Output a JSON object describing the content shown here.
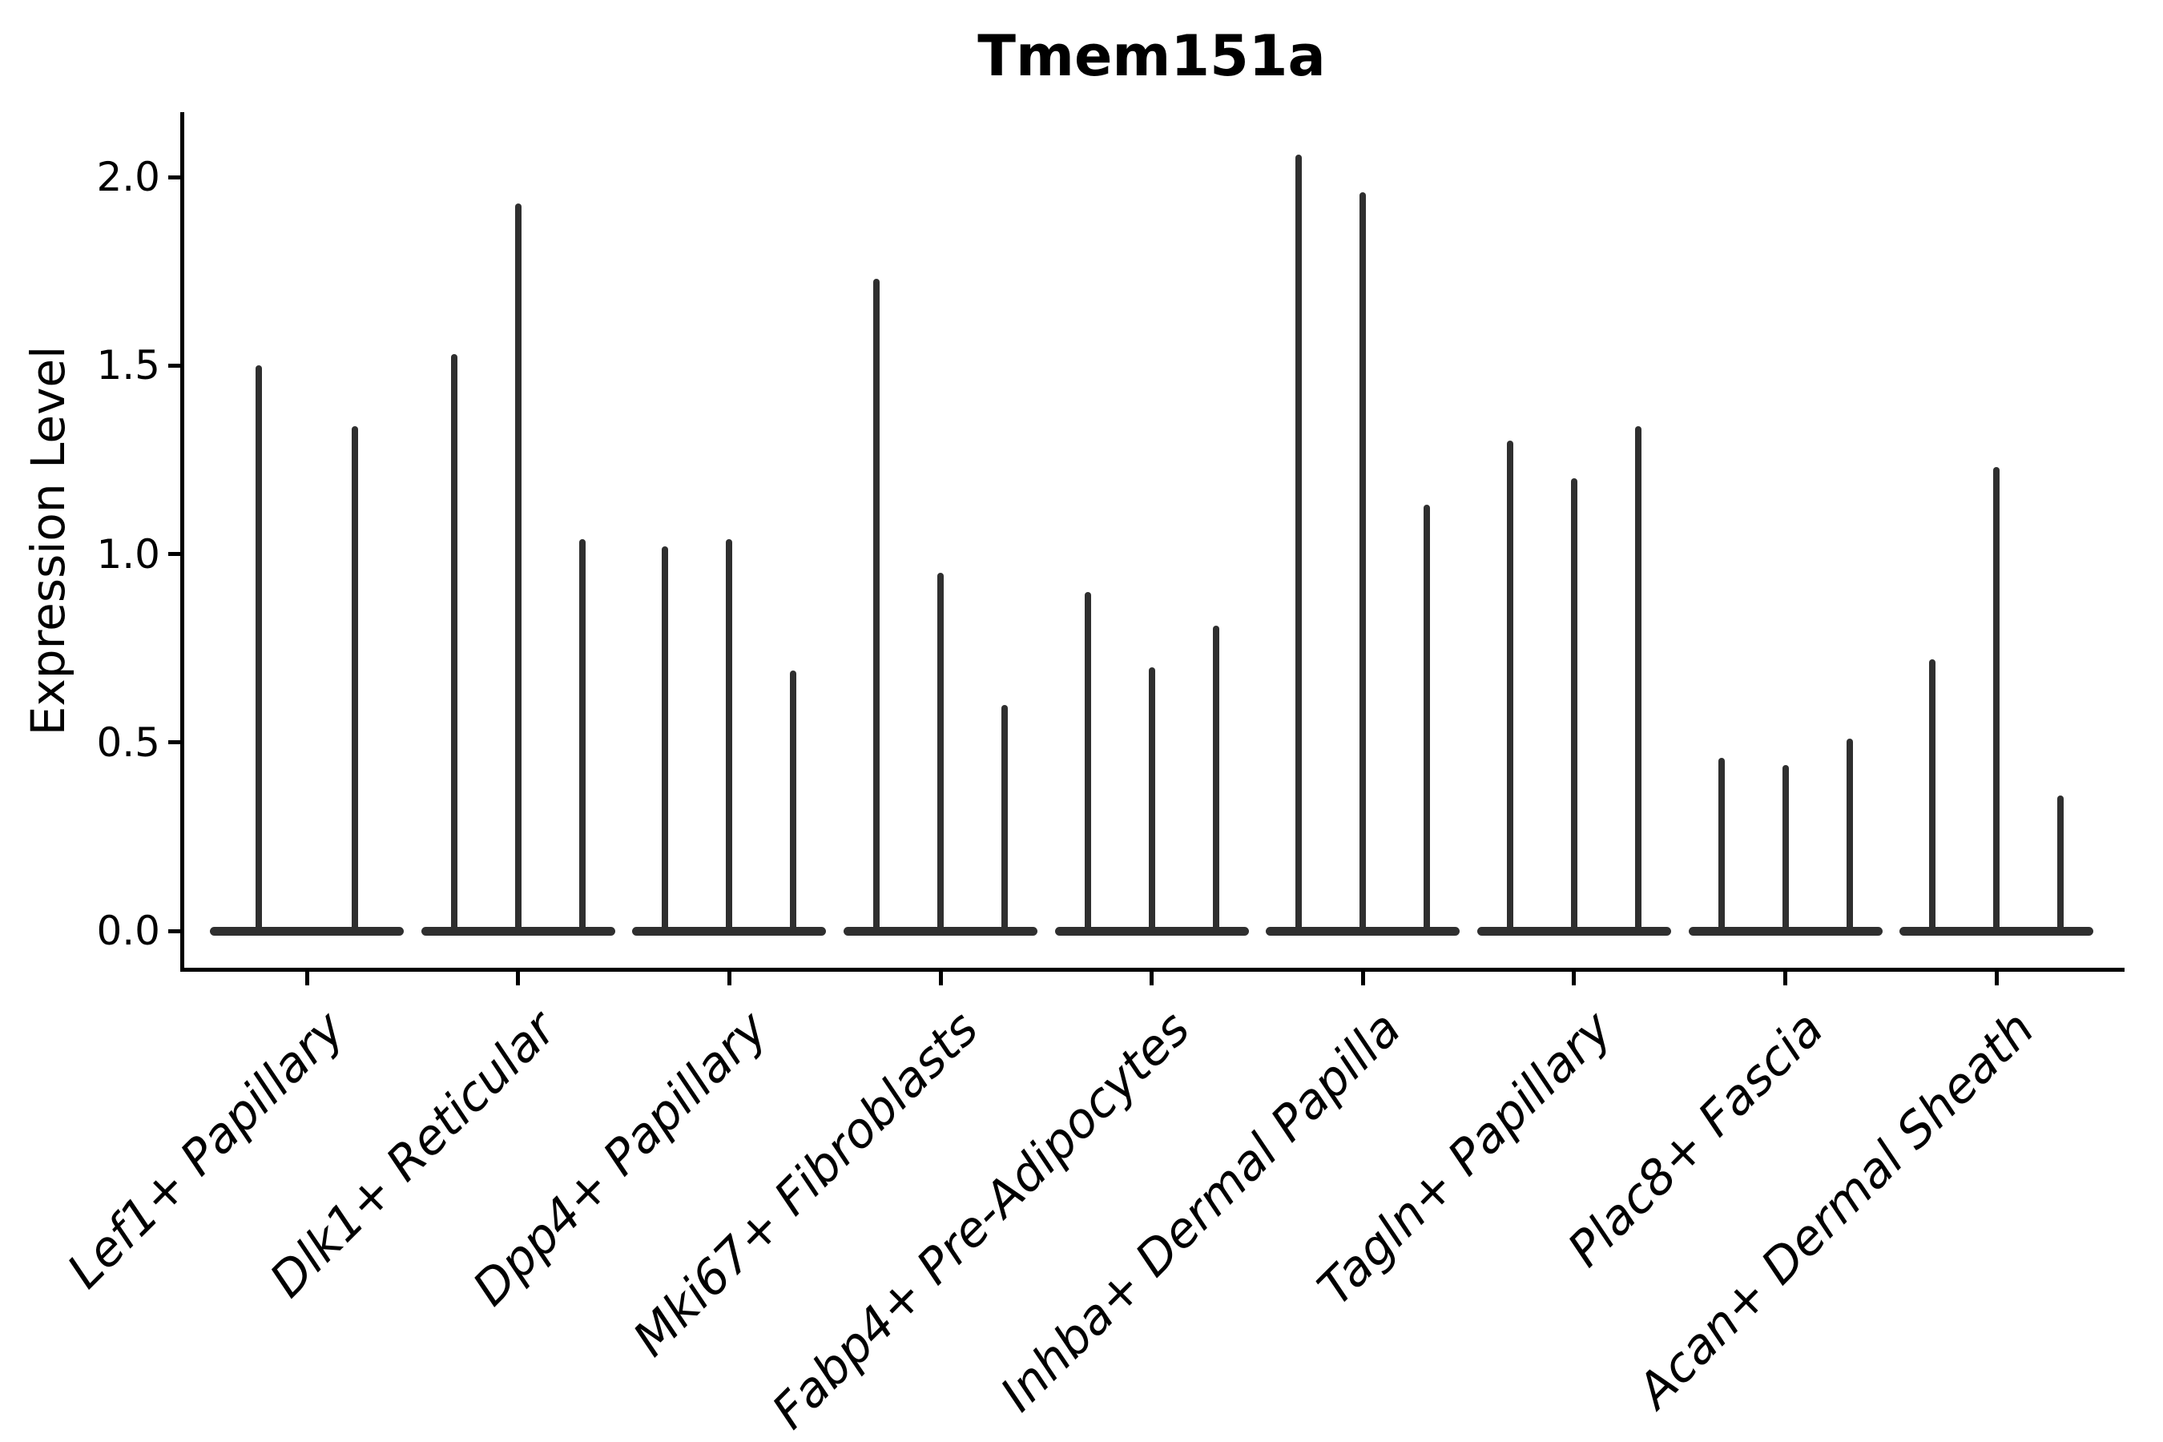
{
  "chart_data": {
    "type": "violin",
    "title": "Tmem151a",
    "xlabel": "",
    "ylabel": "Expression Level",
    "yticks": [
      0.0,
      0.5,
      1.0,
      1.5,
      2.0
    ],
    "ytick_labels": [
      "0.0",
      "0.5",
      "1.0",
      "1.5",
      "2.0"
    ],
    "ylim": [
      -0.1,
      2.17
    ],
    "grid": false,
    "legend_position": "none",
    "categories": [
      "Lef1+ Papillary",
      "Dlk1+ Reticular",
      "Dpp4+ Papillary",
      "Mki67+ Fibroblasts",
      "Fabp4+ Pre-Adipocytes",
      "Inhba+ Dermal Papilla",
      "Tagln+ Papillary",
      "Plac8+ Fascia",
      "Acan+ Dermal Sheath"
    ],
    "groups": [
      {
        "category": "Lef1+ Papillary",
        "spikes": [
          1.5,
          1.34
        ]
      },
      {
        "category": "Dlk1+ Reticular",
        "spikes": [
          1.53,
          1.93,
          1.04
        ]
      },
      {
        "category": "Dpp4+ Papillary",
        "spikes": [
          1.02,
          1.04,
          0.69
        ]
      },
      {
        "category": "Mki67+ Fibroblasts",
        "spikes": [
          1.73,
          0.95,
          0.6
        ]
      },
      {
        "category": "Fabp4+ Pre-Adipocytes",
        "spikes": [
          0.9,
          0.7,
          0.81
        ]
      },
      {
        "category": "Inhba+ Dermal Papilla",
        "spikes": [
          2.06,
          1.96,
          1.13
        ]
      },
      {
        "category": "Tagln+ Papillary",
        "spikes": [
          1.3,
          1.2,
          1.34
        ]
      },
      {
        "category": "Plac8+ Fascia",
        "spikes": [
          0.46,
          0.44,
          0.51
        ]
      },
      {
        "category": "Acan+ Dermal Sheath",
        "spikes": [
          0.72,
          1.23,
          0.36
        ]
      }
    ],
    "colors": {
      "violin": "#2f2f2f",
      "axis": "#000000",
      "text": "#000000",
      "background": "#ffffff"
    }
  }
}
